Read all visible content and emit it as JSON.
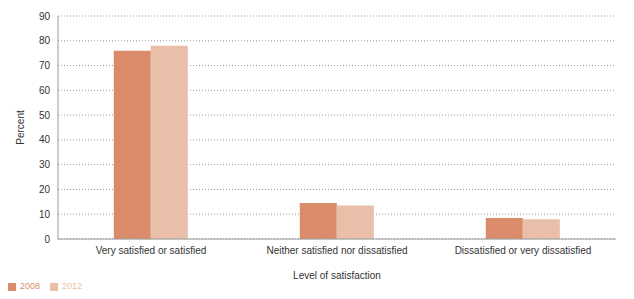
{
  "chart_data": {
    "type": "bar",
    "xlabel": "Level of satisfaction",
    "ylabel": "Percent",
    "categories": [
      "Very satisfied or satisfied",
      "Neither satisfied nor dissatisfied",
      "Dissatisfied or very dissatisfied"
    ],
    "series": [
      {
        "name": "2008",
        "color": "#d98b6a",
        "values": [
          76,
          14.5,
          8.5
        ]
      },
      {
        "name": "2012",
        "color": "#e9bfaa",
        "values": [
          78,
          13.5,
          8
        ]
      }
    ],
    "ylim": [
      0,
      90
    ],
    "yticks": [
      0,
      10,
      20,
      30,
      40,
      50,
      60,
      70,
      80,
      90
    ],
    "grid": true,
    "legend": "bottom-left"
  }
}
